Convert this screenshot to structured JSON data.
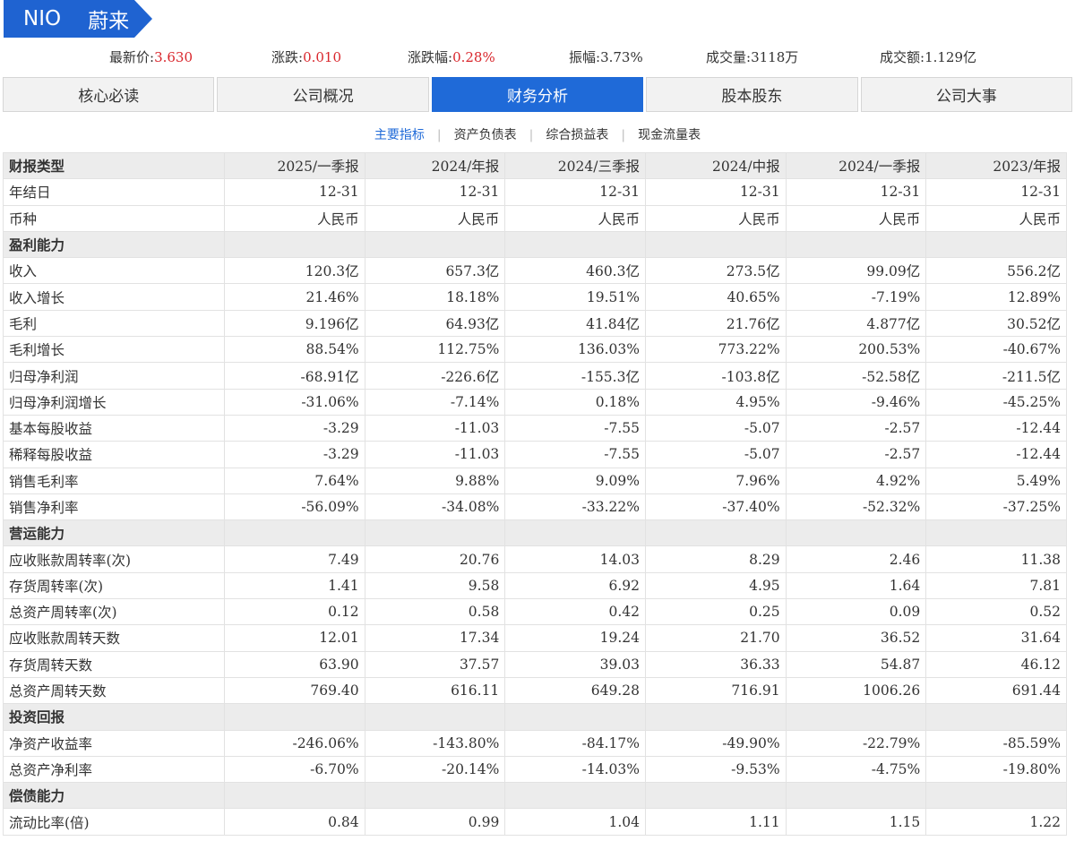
{
  "ticker": {
    "code": "NIO",
    "name": "蔚来"
  },
  "quote": {
    "latest_price_label": "最新价:",
    "latest_price": "3.630",
    "change_label": "涨跌:",
    "change": "0.010",
    "change_pct_label": "涨跌幅:",
    "change_pct": "0.28%",
    "amplitude_label": "振幅:",
    "amplitude": "3.73%",
    "volume_label": "成交量:",
    "volume": "3118万",
    "turnover_label": "成交额:",
    "turnover": "1.129亿"
  },
  "tabs": [
    "核心必读",
    "公司概况",
    "财务分析",
    "股本股东",
    "公司大事"
  ],
  "active_tab": 2,
  "subnav": [
    "主要指标",
    "资产负债表",
    "综合损益表",
    "现金流量表"
  ],
  "colors": {
    "brand": "#1f63d1",
    "active_tab": "#1f6ad8",
    "up_red": "#d9262c",
    "header_bg": "#ececec"
  },
  "table": {
    "header_label": "财报类型",
    "columns": [
      "2025/一季报",
      "2024/年报",
      "2024/三季报",
      "2024/中报",
      "2024/一季报",
      "2023/年报"
    ],
    "rows": [
      {
        "label": "年结日",
        "values": [
          "12-31",
          "12-31",
          "12-31",
          "12-31",
          "12-31",
          "12-31"
        ]
      },
      {
        "label": "币种",
        "values": [
          "人民币",
          "人民币",
          "人民币",
          "人民币",
          "人民币",
          "人民币"
        ]
      },
      {
        "section": true,
        "label": "盈利能力"
      },
      {
        "label": "收入",
        "values": [
          "120.3亿",
          "657.3亿",
          "460.3亿",
          "273.5亿",
          "99.09亿",
          "556.2亿"
        ]
      },
      {
        "label": "收入增长",
        "values": [
          "21.46%",
          "18.18%",
          "19.51%",
          "40.65%",
          "-7.19%",
          "12.89%"
        ]
      },
      {
        "label": "毛利",
        "values": [
          "9.196亿",
          "64.93亿",
          "41.84亿",
          "21.76亿",
          "4.877亿",
          "30.52亿"
        ]
      },
      {
        "label": "毛利增长",
        "values": [
          "88.54%",
          "112.75%",
          "136.03%",
          "773.22%",
          "200.53%",
          "-40.67%"
        ]
      },
      {
        "label": "归母净利润",
        "values": [
          "-68.91亿",
          "-226.6亿",
          "-155.3亿",
          "-103.8亿",
          "-52.58亿",
          "-211.5亿"
        ]
      },
      {
        "label": "归母净利润增长",
        "values": [
          "-31.06%",
          "-7.14%",
          "0.18%",
          "4.95%",
          "-9.46%",
          "-45.25%"
        ]
      },
      {
        "label": "基本每股收益",
        "values": [
          "-3.29",
          "-11.03",
          "-7.55",
          "-5.07",
          "-2.57",
          "-12.44"
        ]
      },
      {
        "label": "稀释每股收益",
        "values": [
          "-3.29",
          "-11.03",
          "-7.55",
          "-5.07",
          "-2.57",
          "-12.44"
        ]
      },
      {
        "label": "销售毛利率",
        "values": [
          "7.64%",
          "9.88%",
          "9.09%",
          "7.96%",
          "4.92%",
          "5.49%"
        ]
      },
      {
        "label": "销售净利率",
        "values": [
          "-56.09%",
          "-34.08%",
          "-33.22%",
          "-37.40%",
          "-52.32%",
          "-37.25%"
        ]
      },
      {
        "section": true,
        "label": "营运能力"
      },
      {
        "label": "应收账款周转率(次)",
        "values": [
          "7.49",
          "20.76",
          "14.03",
          "8.29",
          "2.46",
          "11.38"
        ]
      },
      {
        "label": "存货周转率(次)",
        "values": [
          "1.41",
          "9.58",
          "6.92",
          "4.95",
          "1.64",
          "7.81"
        ]
      },
      {
        "label": "总资产周转率(次)",
        "values": [
          "0.12",
          "0.58",
          "0.42",
          "0.25",
          "0.09",
          "0.52"
        ]
      },
      {
        "label": "应收账款周转天数",
        "values": [
          "12.01",
          "17.34",
          "19.24",
          "21.70",
          "36.52",
          "31.64"
        ]
      },
      {
        "label": "存货周转天数",
        "values": [
          "63.90",
          "37.57",
          "39.03",
          "36.33",
          "54.87",
          "46.12"
        ]
      },
      {
        "label": "总资产周转天数",
        "values": [
          "769.40",
          "616.11",
          "649.28",
          "716.91",
          "1006.26",
          "691.44"
        ]
      },
      {
        "section": true,
        "label": "投资回报"
      },
      {
        "label": "净资产收益率",
        "values": [
          "-246.06%",
          "-143.80%",
          "-84.17%",
          "-49.90%",
          "-22.79%",
          "-85.59%"
        ]
      },
      {
        "label": "总资产净利率",
        "values": [
          "-6.70%",
          "-20.14%",
          "-14.03%",
          "-9.53%",
          "-4.75%",
          "-19.80%"
        ]
      },
      {
        "section": true,
        "label": "偿债能力"
      },
      {
        "label": "流动比率(倍)",
        "values": [
          "0.84",
          "0.99",
          "1.04",
          "1.11",
          "1.15",
          "1.22"
        ]
      }
    ]
  }
}
